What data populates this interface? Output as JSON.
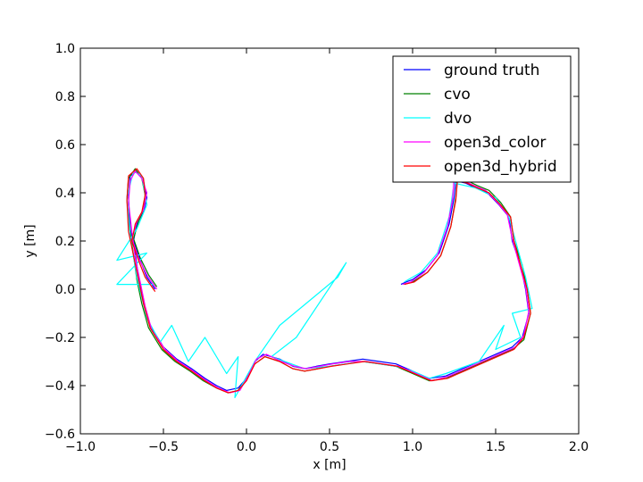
{
  "chart_data": {
    "type": "line",
    "title": "",
    "xlabel": "x [m]",
    "ylabel": "y [m]",
    "xlim": [
      -1.0,
      2.0
    ],
    "ylim": [
      -0.6,
      1.0
    ],
    "xticks": [
      -1.0,
      -0.5,
      0.0,
      0.5,
      1.0,
      1.5,
      2.0
    ],
    "yticks": [
      -0.6,
      -0.4,
      -0.2,
      0.0,
      0.2,
      0.4,
      0.6,
      0.8,
      1.0
    ],
    "xtick_labels": [
      "−1.0",
      "−0.5",
      "0.0",
      "0.5",
      "1.0",
      "1.5",
      "2.0"
    ],
    "ytick_labels": [
      "−0.6",
      "−0.4",
      "−0.2",
      "0.0",
      "0.2",
      "0.4",
      "0.6",
      "0.8",
      "1.0"
    ],
    "grid": false,
    "legend_position": "top-right",
    "series": [
      {
        "name": "ground truth",
        "color": "#0000ff",
        "points": [
          [
            -0.55,
            0.0
          ],
          [
            -0.6,
            0.05
          ],
          [
            -0.64,
            0.12
          ],
          [
            -0.68,
            0.2
          ],
          [
            -0.66,
            0.27
          ],
          [
            -0.62,
            0.32
          ],
          [
            -0.6,
            0.38
          ],
          [
            -0.62,
            0.45
          ],
          [
            -0.66,
            0.49
          ],
          [
            -0.7,
            0.47
          ],
          [
            -0.71,
            0.38
          ],
          [
            -0.7,
            0.25
          ],
          [
            -0.67,
            0.15
          ],
          [
            -0.65,
            0.05
          ],
          [
            -0.62,
            -0.05
          ],
          [
            -0.58,
            -0.15
          ],
          [
            -0.5,
            -0.24
          ],
          [
            -0.42,
            -0.29
          ],
          [
            -0.33,
            -0.33
          ],
          [
            -0.25,
            -0.37
          ],
          [
            -0.18,
            -0.4
          ],
          [
            -0.12,
            -0.42
          ],
          [
            -0.05,
            -0.41
          ],
          [
            0.0,
            -0.37
          ],
          [
            0.05,
            -0.3
          ],
          [
            0.1,
            -0.27
          ],
          [
            0.2,
            -0.29
          ],
          [
            0.28,
            -0.32
          ],
          [
            0.35,
            -0.33
          ],
          [
            0.42,
            -0.32
          ],
          [
            0.5,
            -0.31
          ],
          [
            0.6,
            -0.3
          ],
          [
            0.7,
            -0.29
          ],
          [
            0.8,
            -0.3
          ],
          [
            0.9,
            -0.31
          ],
          [
            1.0,
            -0.34
          ],
          [
            1.1,
            -0.37
          ],
          [
            1.2,
            -0.36
          ],
          [
            1.3,
            -0.33
          ],
          [
            1.4,
            -0.3
          ],
          [
            1.5,
            -0.27
          ],
          [
            1.6,
            -0.24
          ],
          [
            1.66,
            -0.2
          ],
          [
            1.7,
            -0.1
          ],
          [
            1.68,
            0.0
          ],
          [
            1.65,
            0.1
          ],
          [
            1.6,
            0.2
          ],
          [
            1.58,
            0.3
          ],
          [
            1.52,
            0.35
          ],
          [
            1.45,
            0.4
          ],
          [
            1.38,
            0.42
          ],
          [
            1.32,
            0.44
          ],
          [
            1.26,
            0.45
          ],
          [
            1.25,
            0.38
          ],
          [
            1.22,
            0.27
          ],
          [
            1.16,
            0.15
          ],
          [
            1.08,
            0.08
          ],
          [
            1.0,
            0.04
          ],
          [
            0.96,
            0.03
          ],
          [
            0.93,
            0.02
          ]
        ]
      },
      {
        "name": "cvo",
        "color": "#008000",
        "points": [
          [
            -0.54,
            0.01
          ],
          [
            -0.59,
            0.06
          ],
          [
            -0.64,
            0.13
          ],
          [
            -0.68,
            0.21
          ],
          [
            -0.65,
            0.28
          ],
          [
            -0.62,
            0.33
          ],
          [
            -0.61,
            0.39
          ],
          [
            -0.63,
            0.46
          ],
          [
            -0.67,
            0.5
          ],
          [
            -0.71,
            0.46
          ],
          [
            -0.72,
            0.37
          ],
          [
            -0.7,
            0.24
          ],
          [
            -0.68,
            0.14
          ],
          [
            -0.66,
            0.04
          ],
          [
            -0.63,
            -0.06
          ],
          [
            -0.59,
            -0.16
          ],
          [
            -0.51,
            -0.25
          ],
          [
            -0.43,
            -0.3
          ],
          [
            -0.34,
            -0.34
          ],
          [
            -0.26,
            -0.38
          ],
          [
            -0.18,
            -0.41
          ],
          [
            -0.11,
            -0.43
          ],
          [
            -0.05,
            -0.42
          ],
          [
            0.0,
            -0.37
          ],
          [
            0.05,
            -0.31
          ],
          [
            0.11,
            -0.28
          ],
          [
            0.2,
            -0.3
          ],
          [
            0.28,
            -0.33
          ],
          [
            0.35,
            -0.34
          ],
          [
            0.43,
            -0.33
          ],
          [
            0.5,
            -0.32
          ],
          [
            0.6,
            -0.31
          ],
          [
            0.7,
            -0.3
          ],
          [
            0.8,
            -0.31
          ],
          [
            0.9,
            -0.32
          ],
          [
            1.0,
            -0.35
          ],
          [
            1.1,
            -0.38
          ],
          [
            1.2,
            -0.37
          ],
          [
            1.3,
            -0.34
          ],
          [
            1.4,
            -0.31
          ],
          [
            1.5,
            -0.28
          ],
          [
            1.6,
            -0.25
          ],
          [
            1.67,
            -0.21
          ],
          [
            1.71,
            -0.1
          ],
          [
            1.69,
            0.0
          ],
          [
            1.66,
            0.1
          ],
          [
            1.61,
            0.2
          ],
          [
            1.59,
            0.3
          ],
          [
            1.53,
            0.36
          ],
          [
            1.46,
            0.41
          ],
          [
            1.39,
            0.43
          ],
          [
            1.33,
            0.45
          ],
          [
            1.27,
            0.46
          ],
          [
            1.26,
            0.38
          ],
          [
            1.23,
            0.26
          ],
          [
            1.17,
            0.14
          ],
          [
            1.09,
            0.07
          ],
          [
            1.0,
            0.03
          ],
          [
            0.95,
            0.02
          ]
        ]
      },
      {
        "name": "dvo",
        "color": "#00ffff",
        "points": [
          [
            -0.56,
            0.02
          ],
          [
            -0.78,
            0.02
          ],
          [
            -0.6,
            0.15
          ],
          [
            -0.78,
            0.12
          ],
          [
            -0.66,
            0.25
          ],
          [
            -0.6,
            0.35
          ],
          [
            -0.63,
            0.47
          ],
          [
            -0.68,
            0.49
          ],
          [
            -0.72,
            0.38
          ],
          [
            -0.7,
            0.22
          ],
          [
            -0.66,
            0.05
          ],
          [
            -0.6,
            -0.12
          ],
          [
            -0.52,
            -0.22
          ],
          [
            -0.45,
            -0.15
          ],
          [
            -0.35,
            -0.3
          ],
          [
            -0.25,
            -0.2
          ],
          [
            -0.12,
            -0.35
          ],
          [
            -0.05,
            -0.28
          ],
          [
            -0.07,
            -0.45
          ],
          [
            0.05,
            -0.3
          ],
          [
            0.2,
            -0.15
          ],
          [
            0.55,
            0.05
          ],
          [
            0.6,
            0.11
          ],
          [
            0.3,
            -0.2
          ],
          [
            0.15,
            -0.28
          ],
          [
            0.35,
            -0.33
          ],
          [
            0.5,
            -0.32
          ],
          [
            0.7,
            -0.3
          ],
          [
            0.9,
            -0.32
          ],
          [
            1.0,
            -0.34
          ],
          [
            1.1,
            -0.37
          ],
          [
            1.2,
            -0.35
          ],
          [
            1.4,
            -0.3
          ],
          [
            1.55,
            -0.15
          ],
          [
            1.5,
            -0.25
          ],
          [
            1.65,
            -0.2
          ],
          [
            1.6,
            -0.1
          ],
          [
            1.72,
            -0.08
          ],
          [
            1.68,
            0.05
          ],
          [
            1.62,
            0.2
          ],
          [
            1.58,
            0.3
          ],
          [
            1.5,
            0.38
          ],
          [
            1.38,
            0.42
          ],
          [
            1.25,
            0.44
          ],
          [
            1.22,
            0.3
          ],
          [
            1.15,
            0.15
          ],
          [
            1.05,
            0.07
          ],
          [
            0.95,
            0.03
          ]
        ]
      },
      {
        "name": "open3d_color",
        "color": "#ff00ff",
        "points": [
          [
            -0.54,
            0.0
          ],
          [
            -0.6,
            0.06
          ],
          [
            -0.65,
            0.13
          ],
          [
            -0.69,
            0.21
          ],
          [
            -0.66,
            0.28
          ],
          [
            -0.62,
            0.33
          ],
          [
            -0.6,
            0.4
          ],
          [
            -0.63,
            0.46
          ],
          [
            -0.67,
            0.49
          ],
          [
            -0.7,
            0.45
          ],
          [
            -0.71,
            0.36
          ],
          [
            -0.69,
            0.24
          ],
          [
            -0.67,
            0.13
          ],
          [
            -0.64,
            0.03
          ],
          [
            -0.61,
            -0.07
          ],
          [
            -0.57,
            -0.17
          ],
          [
            -0.49,
            -0.25
          ],
          [
            -0.41,
            -0.3
          ],
          [
            -0.32,
            -0.34
          ],
          [
            -0.24,
            -0.38
          ],
          [
            -0.17,
            -0.41
          ],
          [
            -0.1,
            -0.43
          ],
          [
            -0.04,
            -0.42
          ],
          [
            0.01,
            -0.36
          ],
          [
            0.06,
            -0.29
          ],
          [
            0.12,
            -0.27
          ],
          [
            0.21,
            -0.3
          ],
          [
            0.29,
            -0.32
          ],
          [
            0.36,
            -0.33
          ],
          [
            0.44,
            -0.32
          ],
          [
            0.52,
            -0.31
          ],
          [
            0.62,
            -0.3
          ],
          [
            0.72,
            -0.3
          ],
          [
            0.82,
            -0.31
          ],
          [
            0.92,
            -0.32
          ],
          [
            1.02,
            -0.35
          ],
          [
            1.12,
            -0.38
          ],
          [
            1.22,
            -0.36
          ],
          [
            1.32,
            -0.33
          ],
          [
            1.42,
            -0.3
          ],
          [
            1.52,
            -0.27
          ],
          [
            1.62,
            -0.24
          ],
          [
            1.67,
            -0.19
          ],
          [
            1.7,
            -0.09
          ],
          [
            1.68,
            0.01
          ],
          [
            1.64,
            0.11
          ],
          [
            1.6,
            0.21
          ],
          [
            1.57,
            0.31
          ],
          [
            1.51,
            0.36
          ],
          [
            1.44,
            0.41
          ],
          [
            1.37,
            0.43
          ],
          [
            1.31,
            0.45
          ],
          [
            1.25,
            0.46
          ],
          [
            1.24,
            0.37
          ],
          [
            1.21,
            0.26
          ],
          [
            1.15,
            0.14
          ],
          [
            1.07,
            0.07
          ],
          [
            0.99,
            0.03
          ],
          [
            0.94,
            0.02
          ]
        ]
      },
      {
        "name": "open3d_hybrid",
        "color": "#ff0000",
        "points": [
          [
            -0.55,
            -0.01
          ],
          [
            -0.61,
            0.05
          ],
          [
            -0.65,
            0.12
          ],
          [
            -0.69,
            0.2
          ],
          [
            -0.67,
            0.27
          ],
          [
            -0.63,
            0.32
          ],
          [
            -0.61,
            0.39
          ],
          [
            -0.62,
            0.46
          ],
          [
            -0.66,
            0.5
          ],
          [
            -0.71,
            0.47
          ],
          [
            -0.72,
            0.37
          ],
          [
            -0.71,
            0.24
          ],
          [
            -0.68,
            0.14
          ],
          [
            -0.65,
            0.04
          ],
          [
            -0.62,
            -0.06
          ],
          [
            -0.58,
            -0.16
          ],
          [
            -0.5,
            -0.25
          ],
          [
            -0.42,
            -0.3
          ],
          [
            -0.33,
            -0.34
          ],
          [
            -0.25,
            -0.38
          ],
          [
            -0.18,
            -0.41
          ],
          [
            -0.11,
            -0.43
          ],
          [
            -0.05,
            -0.42
          ],
          [
            0.0,
            -0.38
          ],
          [
            0.05,
            -0.31
          ],
          [
            0.11,
            -0.28
          ],
          [
            0.2,
            -0.3
          ],
          [
            0.28,
            -0.33
          ],
          [
            0.35,
            -0.34
          ],
          [
            0.43,
            -0.33
          ],
          [
            0.51,
            -0.32
          ],
          [
            0.61,
            -0.31
          ],
          [
            0.71,
            -0.3
          ],
          [
            0.81,
            -0.31
          ],
          [
            0.91,
            -0.32
          ],
          [
            1.01,
            -0.35
          ],
          [
            1.11,
            -0.38
          ],
          [
            1.21,
            -0.37
          ],
          [
            1.31,
            -0.34
          ],
          [
            1.41,
            -0.31
          ],
          [
            1.51,
            -0.28
          ],
          [
            1.61,
            -0.25
          ],
          [
            1.67,
            -0.2
          ],
          [
            1.71,
            -0.1
          ],
          [
            1.69,
            0.0
          ],
          [
            1.65,
            0.1
          ],
          [
            1.61,
            0.2
          ],
          [
            1.59,
            0.3
          ],
          [
            1.53,
            0.35
          ],
          [
            1.46,
            0.4
          ],
          [
            1.39,
            0.42
          ],
          [
            1.33,
            0.44
          ],
          [
            1.27,
            0.45
          ],
          [
            1.26,
            0.37
          ],
          [
            1.23,
            0.26
          ],
          [
            1.17,
            0.14
          ],
          [
            1.09,
            0.07
          ],
          [
            1.01,
            0.03
          ],
          [
            0.95,
            0.02
          ]
        ]
      }
    ]
  }
}
